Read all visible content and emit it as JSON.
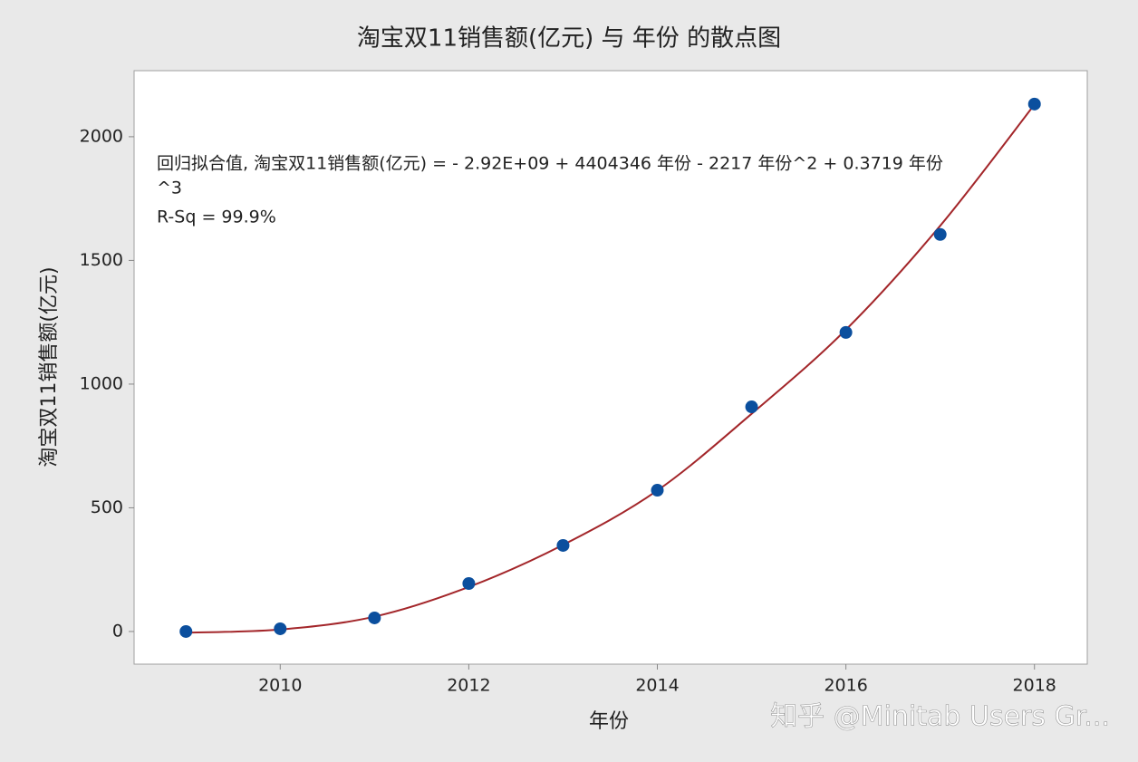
{
  "chart_data": {
    "type": "scatter",
    "title": "淘宝双11销售额(亿元) 与 年份 的散点图",
    "x_label": "年份",
    "y_label": "淘宝双11销售额(亿元)",
    "annotation": [
      "回归拟合值, 淘宝双11销售额(亿元) = - 2.92E+09 + 4404346 年份 - 2217 年份^2 + 0.3719 年份",
      "^3",
      "R-Sq = 99.9%"
    ],
    "watermark": "知乎 @Minitab Users Gr...",
    "series": [
      {
        "kind": "markers",
        "color": "#0b4f9e",
        "x": [
          2009,
          2010,
          2011,
          2012,
          2013,
          2014,
          2015,
          2016,
          2017,
          2018
        ],
        "values": [
          0,
          11,
          55,
          194,
          348,
          571,
          908,
          1209,
          1605,
          2132
        ]
      },
      {
        "kind": "line",
        "color": "#a3262a",
        "x": [
          2009,
          2010,
          2011,
          2012,
          2013,
          2014,
          2015,
          2016,
          2017,
          2018
        ],
        "values": [
          -5,
          8,
          60,
          180,
          350,
          570,
          880,
          1220,
          1640,
          2130
        ]
      }
    ],
    "xlim": [
      2008.45,
      2018.56
    ],
    "xticks": [
      2010,
      2012,
      2014,
      2016,
      2018
    ],
    "ylim": [
      -132,
      2267
    ],
    "yticks": [
      0,
      500,
      1000,
      1500,
      2000
    ]
  }
}
